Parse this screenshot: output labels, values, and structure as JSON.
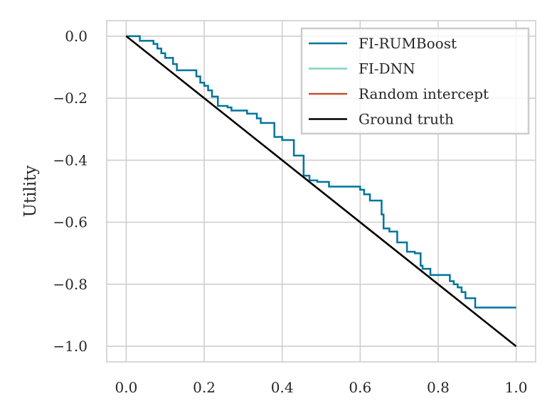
{
  "chart_data": {
    "type": "line",
    "title": "",
    "xlabel": "",
    "ylabel": "Utility",
    "xlim": [
      -0.05,
      1.05
    ],
    "ylim": [
      -1.05,
      0.05
    ],
    "xticks": [
      0.0,
      0.2,
      0.4,
      0.6,
      0.8,
      1.0
    ],
    "xtick_labels": [
      "0.0",
      "0.2",
      "0.4",
      "0.6",
      "0.8",
      "1.0"
    ],
    "yticks": [
      0.0,
      -0.2,
      -0.4,
      -0.6,
      -0.8,
      -1.0
    ],
    "ytick_labels": [
      "0.0",
      "−0.2",
      "−0.4",
      "−0.6",
      "−0.8",
      "−1.0"
    ],
    "grid": true,
    "legend_position": "top-right",
    "series": [
      {
        "name": "FI-RUMBoost",
        "color": "#00749c",
        "step": true,
        "x": [
          0.0,
          0.035,
          0.07,
          0.08,
          0.09,
          0.1,
          0.12,
          0.13,
          0.18,
          0.19,
          0.2,
          0.21,
          0.22,
          0.235,
          0.26,
          0.27,
          0.29,
          0.31,
          0.335,
          0.345,
          0.36,
          0.38,
          0.4,
          0.43,
          0.455,
          0.47,
          0.49,
          0.52,
          0.56,
          0.6,
          0.61,
          0.625,
          0.655,
          0.66,
          0.675,
          0.695,
          0.72,
          0.74,
          0.755,
          0.76,
          0.78,
          0.83,
          0.84,
          0.85,
          0.86,
          0.87,
          0.895,
          1.0
        ],
        "y": [
          0.0,
          -0.015,
          -0.025,
          -0.04,
          -0.055,
          -0.07,
          -0.09,
          -0.11,
          -0.13,
          -0.15,
          -0.16,
          -0.175,
          -0.195,
          -0.225,
          -0.23,
          -0.24,
          -0.24,
          -0.25,
          -0.265,
          -0.28,
          -0.28,
          -0.325,
          -0.335,
          -0.385,
          -0.45,
          -0.465,
          -0.47,
          -0.485,
          -0.485,
          -0.495,
          -0.51,
          -0.53,
          -0.575,
          -0.62,
          -0.63,
          -0.665,
          -0.695,
          -0.7,
          -0.74,
          -0.75,
          -0.77,
          -0.79,
          -0.8,
          -0.81,
          -0.825,
          -0.845,
          -0.875,
          -0.875
        ]
      },
      {
        "name": "FI-DNN",
        "color": "#7fd4c1",
        "step": false,
        "x": [
          0.0,
          1.0
        ],
        "y": [
          0.0,
          -1.0
        ]
      },
      {
        "name": "Random intercept",
        "color": "#c1502e",
        "step": false,
        "x": [
          0.0,
          1.0
        ],
        "y": [
          0.0,
          -1.0
        ]
      },
      {
        "name": "Ground truth",
        "color": "#000000",
        "step": false,
        "x": [
          0.0,
          1.0
        ],
        "y": [
          0.0,
          -1.0
        ]
      }
    ]
  }
}
